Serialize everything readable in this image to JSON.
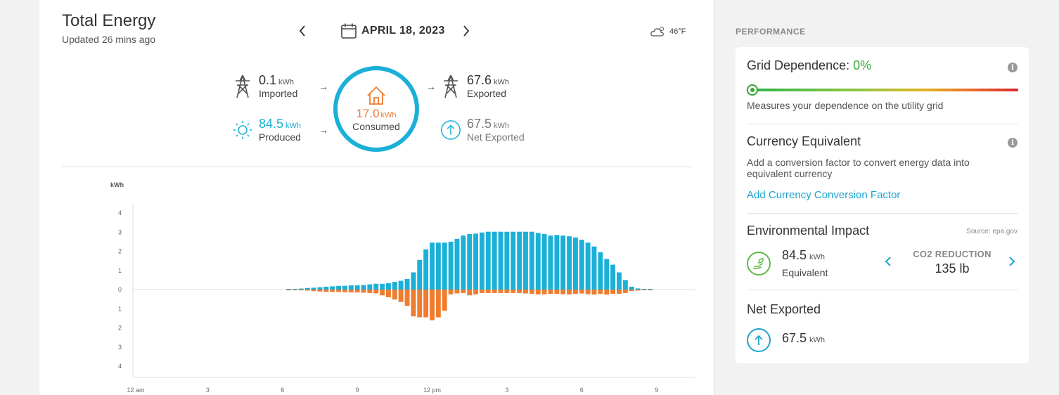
{
  "header": {
    "title": "Total Energy",
    "updated": "Updated 26 mins ago",
    "date": "APRIL 18, 2023",
    "weather": "46°F"
  },
  "flow": {
    "imported": {
      "value": "0.1",
      "unit": "kWh",
      "label": "Imported"
    },
    "produced": {
      "value": "84.5",
      "unit": "kWh",
      "label": "Produced"
    },
    "consumed": {
      "value": "17.0",
      "unit": "kWh",
      "label": "Consumed"
    },
    "exported": {
      "value": "67.6",
      "unit": "kWh",
      "label": "Exported"
    },
    "net_exported": {
      "value": "67.5",
      "unit": "kWh",
      "label": "Net Exported"
    }
  },
  "colors": {
    "produced": "#1ab0d8",
    "consumed": "#f07c2f",
    "accent": "#1aa4cf",
    "good": "#3aa935"
  },
  "chart_data": {
    "type": "bar",
    "ylabel": "kWh",
    "ylim": [
      -4,
      4
    ],
    "y_ticks": [
      "4",
      "3",
      "2",
      "1",
      "0",
      "1",
      "2",
      "3",
      "4"
    ],
    "x_ticks": [
      "12 am",
      "3",
      "6",
      "9",
      "12 pm",
      "3",
      "6",
      "9"
    ],
    "interval_hours": 0.25,
    "series": [
      {
        "color": "#1ab0d8",
        "start_hour": 6.25,
        "values": [
          0.02,
          0.03,
          0.05,
          0.08,
          0.1,
          0.12,
          0.15,
          0.17,
          0.19,
          0.2,
          0.22,
          0.22,
          0.24,
          0.27,
          0.3,
          0.3,
          0.33,
          0.4,
          0.46,
          0.55,
          0.9,
          1.55,
          2.1,
          2.45,
          2.45,
          2.45,
          2.5,
          2.65,
          2.82,
          2.9,
          2.92,
          2.98,
          3.02,
          3.02,
          3.02,
          3.02,
          3.02,
          3.02,
          3.02,
          3.02,
          2.95,
          2.9,
          2.82,
          2.85,
          2.82,
          2.78,
          2.72,
          2.6,
          2.45,
          2.25,
          1.95,
          1.6,
          1.3,
          0.9,
          0.5,
          0.15,
          0.06,
          0.03,
          0.02
        ]
      },
      {
        "color": "#f07c2f",
        "start_hour": 6.25,
        "values": [
          0.02,
          0.03,
          0.04,
          0.05,
          0.08,
          0.1,
          0.12,
          0.12,
          0.12,
          0.14,
          0.15,
          0.15,
          0.16,
          0.18,
          0.2,
          0.3,
          0.4,
          0.52,
          0.65,
          0.85,
          1.4,
          1.45,
          1.45,
          1.6,
          1.45,
          1.1,
          0.25,
          0.2,
          0.18,
          0.3,
          0.25,
          0.18,
          0.18,
          0.18,
          0.18,
          0.18,
          0.18,
          0.18,
          0.2,
          0.22,
          0.25,
          0.25,
          0.22,
          0.22,
          0.24,
          0.26,
          0.22,
          0.2,
          0.24,
          0.26,
          0.22,
          0.26,
          0.22,
          0.22,
          0.18,
          0.08,
          0.05,
          0.03,
          0.02
        ]
      }
    ]
  },
  "performance": {
    "section_label": "PERFORMANCE",
    "grid": {
      "heading": "Grid Dependence:",
      "value": "0%",
      "value_fraction": 0,
      "desc": "Measures your dependence on the utility grid"
    },
    "currency": {
      "heading": "Currency Equivalent",
      "desc": "Add a conversion factor to convert energy data into equivalent currency",
      "link": "Add Currency Conversion Factor"
    },
    "environment": {
      "heading": "Environmental Impact",
      "source": "Source: epa.gov",
      "value": "84.5",
      "unit": "kWh",
      "label": "Equivalent",
      "metric_label": "CO2 REDUCTION",
      "metric_value": "135 lb"
    },
    "net": {
      "heading": "Net Exported",
      "value": "67.5",
      "unit": "kWh"
    }
  },
  "icons": {
    "calendar": "calendar-icon",
    "weather": "cloud-sun-icon",
    "tower": "power-tower-icon",
    "sun": "sun-icon",
    "house": "house-icon",
    "up_arrow": "arrow-up-circle-icon",
    "leaf": "leaf-hand-icon",
    "info": "info-icon"
  }
}
